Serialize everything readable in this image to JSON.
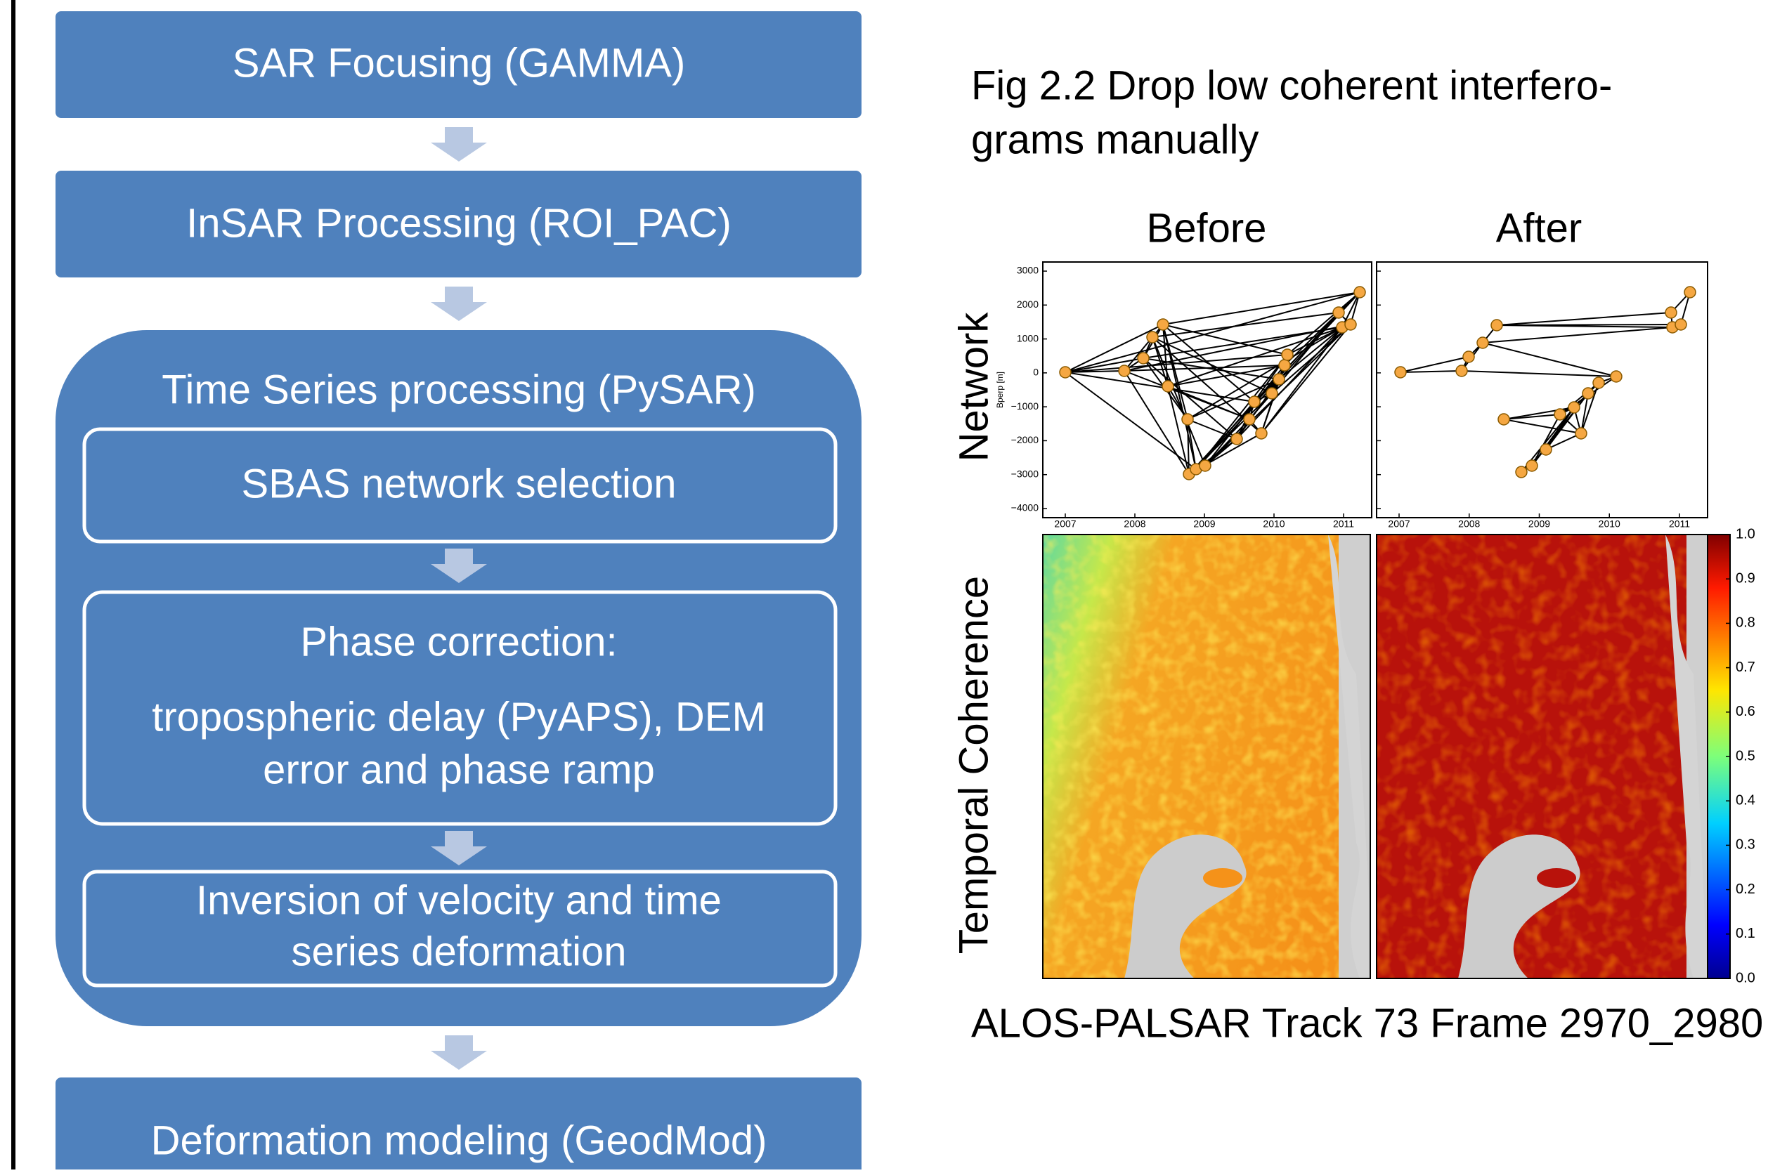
{
  "flowchart": {
    "steps": [
      "SAR Focusing (GAMMA)",
      "InSAR Processing (ROI_PAC)"
    ],
    "group": {
      "title": "Time Series processing (PySAR)",
      "network": "SBAS network selection",
      "correction": {
        "title": "Phase correction:",
        "lines": [
          "tropospheric delay (PyAPS), DEM",
          "error and phase ramp"
        ]
      },
      "inversion": [
        "Inversion of velocity and time",
        "series deformation"
      ]
    },
    "final": "Deformation modeling (GeodMod)"
  },
  "figure": {
    "caption": [
      "Fig 2.2 Drop low coherent interfero-",
      "grams manually"
    ],
    "columns": [
      "Before",
      "After"
    ],
    "rows": [
      "Network",
      "Temporal Coherence"
    ],
    "network_ylabel": "Bperp [m]",
    "yticks": [
      3000,
      2000,
      1000,
      0,
      {
        "value": -1000,
        "label": "−1000"
      },
      {
        "value": -2000,
        "label": "−2000"
      },
      {
        "value": -3000,
        "label": "−3000"
      },
      {
        "value": -4000,
        "label": "−4000"
      }
    ],
    "xticks": [
      2007,
      2008,
      2009,
      2010,
      2011
    ],
    "colorbar_ticks": [
      {
        "value": 1,
        "label": "1.0"
      },
      {
        "value": 0.9,
        "label": "0.9"
      },
      {
        "value": 0.8,
        "label": "0.8"
      },
      {
        "value": 0.7,
        "label": "0.7"
      },
      {
        "value": 0.6,
        "label": "0.6"
      },
      {
        "value": 0.5,
        "label": "0.5"
      },
      {
        "value": 0.4,
        "label": "0.4"
      },
      {
        "value": 0.3,
        "label": "0.3"
      },
      {
        "value": 0.2,
        "label": "0.2"
      },
      {
        "value": 0.1,
        "label": "0.1"
      },
      {
        "value": 0,
        "label": "0.0"
      }
    ],
    "footer": "ALOS-PALSAR Track 73 Frame 2970_2980"
  }
}
